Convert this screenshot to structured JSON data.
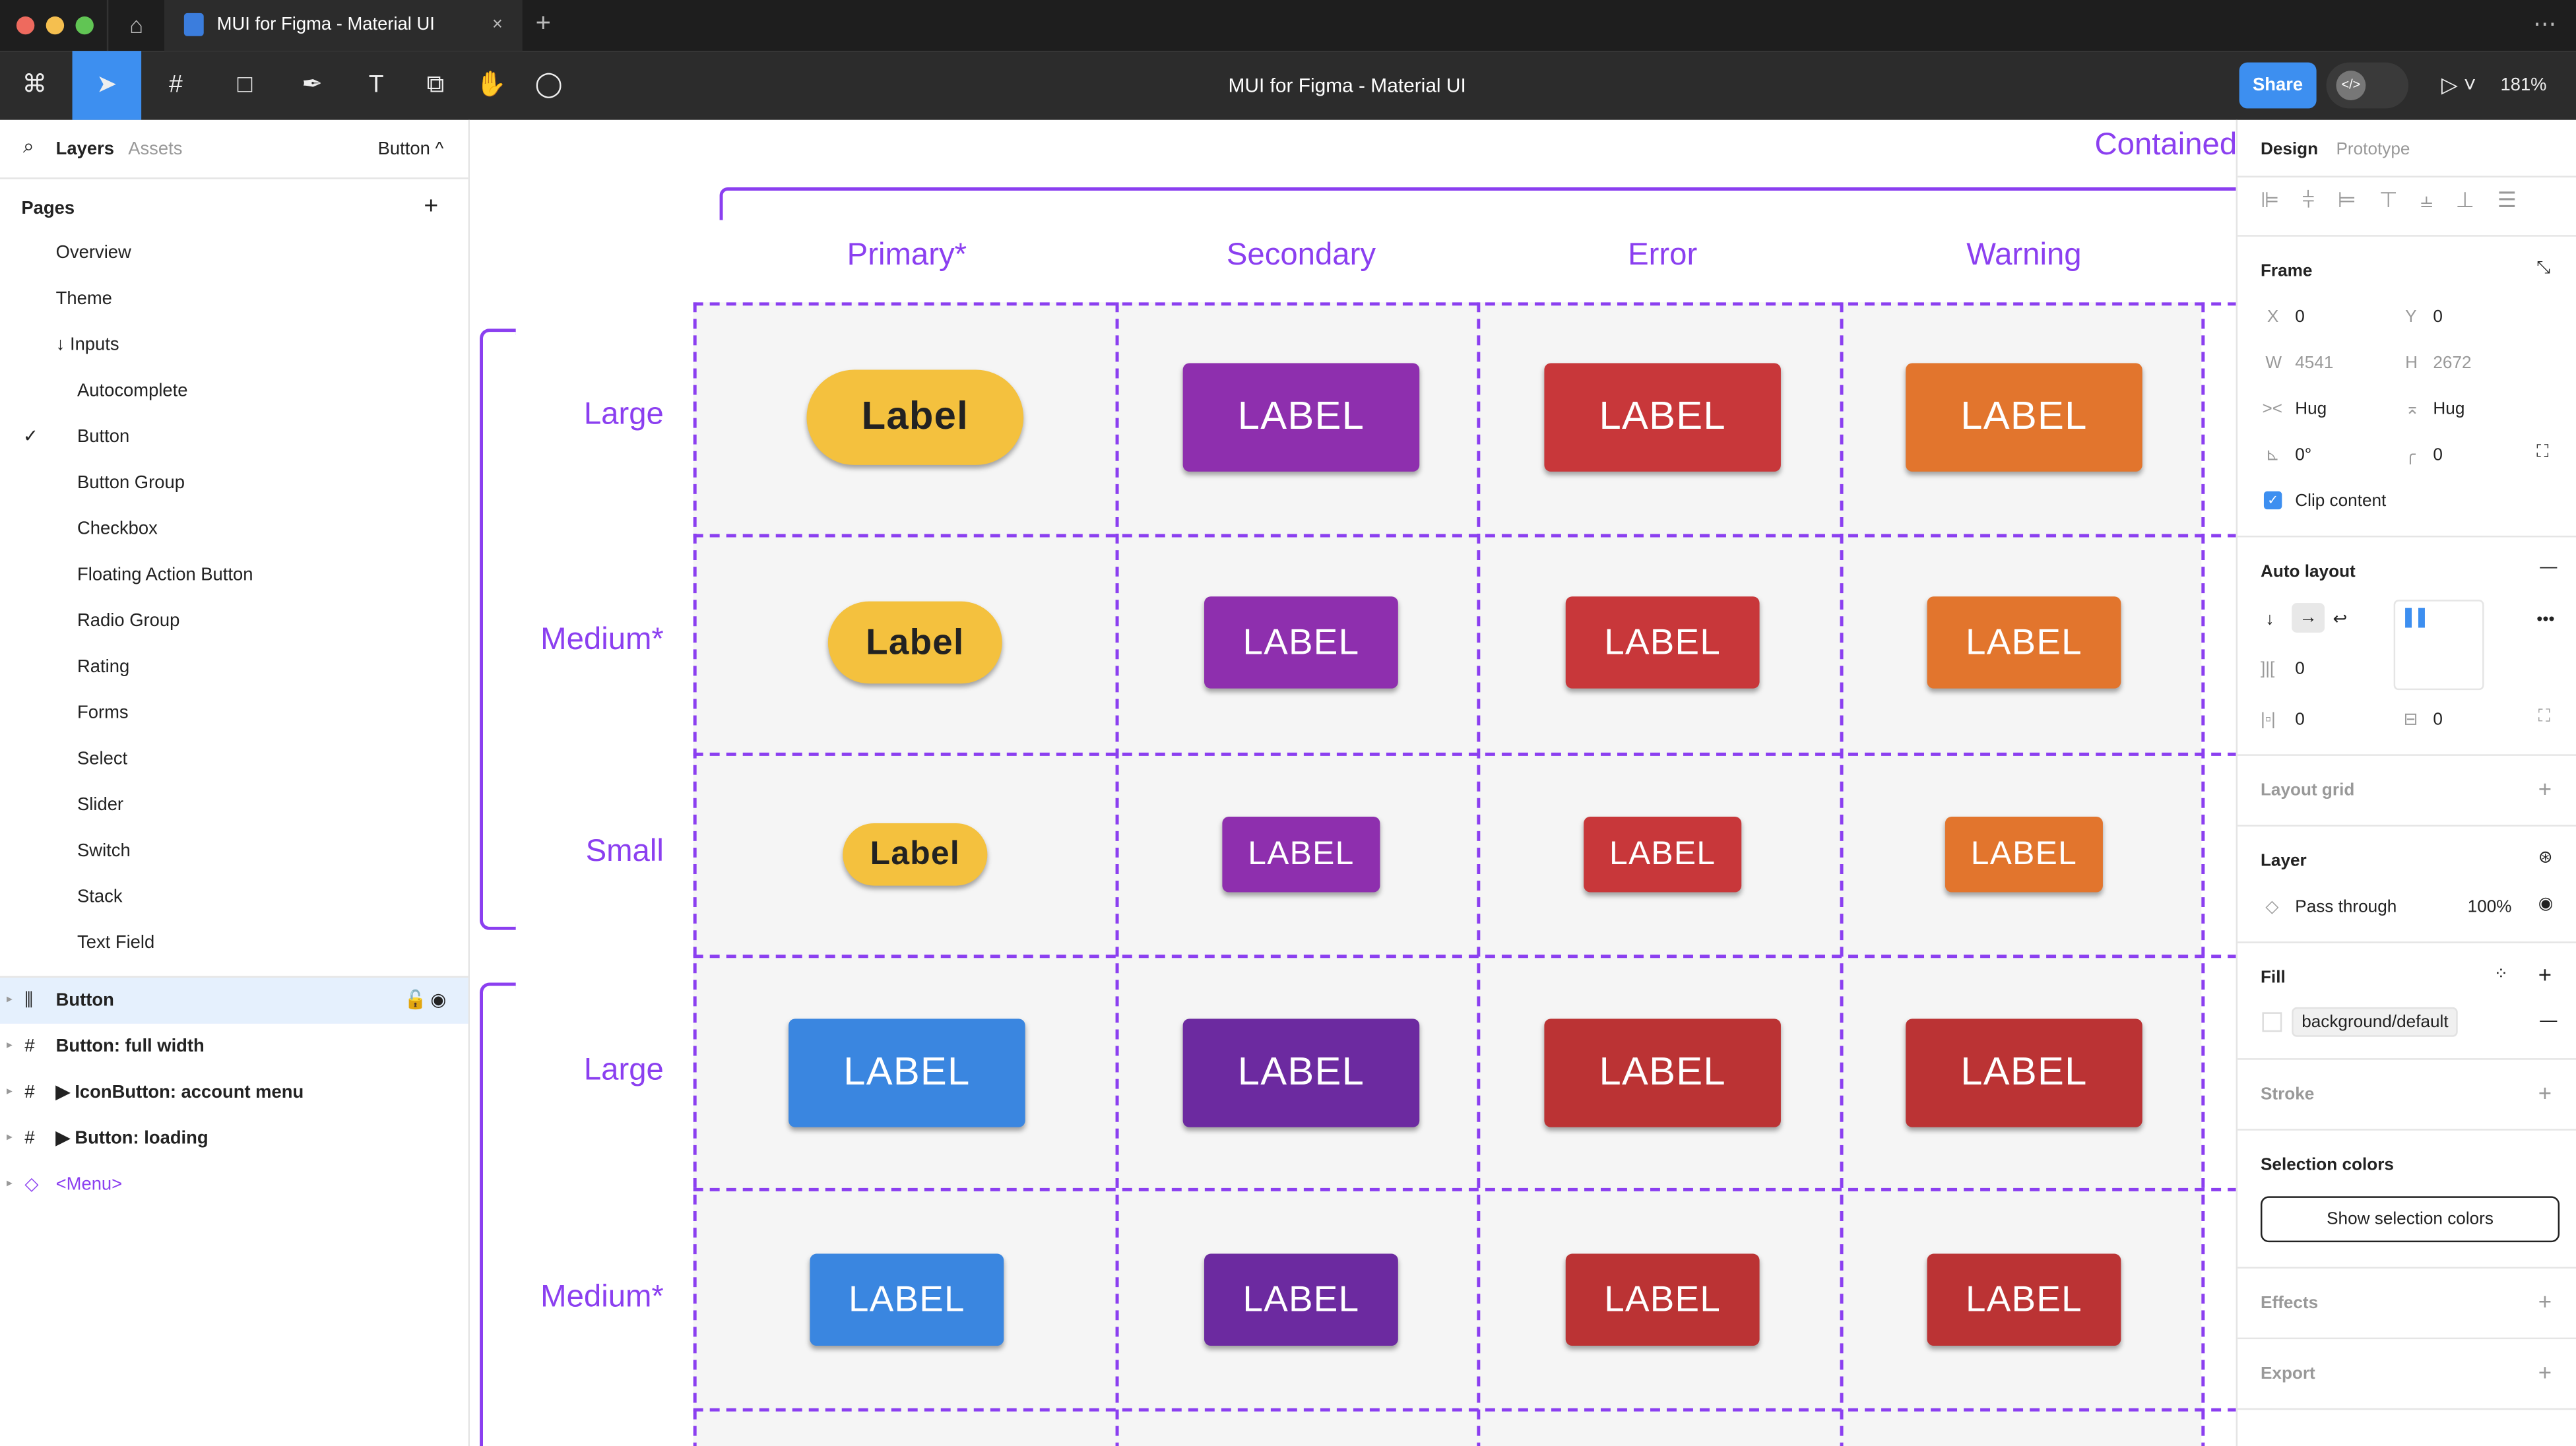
{
  "window": {
    "tab_title": "MUI for Figma - Material UI",
    "close": "×",
    "new_tab": "+",
    "more": "⋯"
  },
  "toolbar": {
    "title": "MUI for Figma - Material UI",
    "share": "Share",
    "zoom": "181%",
    "dev_mode": "</>"
  },
  "left_panel": {
    "tabs": [
      "Layers",
      "Assets"
    ],
    "page_selector": "Button ^",
    "pages_label": "Pages",
    "add": "+",
    "pages": [
      "Overview",
      "Theme",
      "↓ Inputs",
      "Autocomplete",
      "Button",
      "Button Group",
      "Checkbox",
      "Floating Action Button",
      "Radio Group",
      "Rating",
      "Forms",
      "Select",
      "Slider",
      "Switch",
      "Stack",
      "Text Field"
    ],
    "current_page": "Button",
    "layers": [
      {
        "name": "Button",
        "icon": "auto-layout",
        "selected": true
      },
      {
        "name": "Button: full width",
        "icon": "frame"
      },
      {
        "name": "▶ IconButton: account menu",
        "icon": "frame"
      },
      {
        "name": "▶ Button: loading",
        "icon": "frame"
      },
      {
        "name": "<Menu>",
        "icon": "component"
      }
    ]
  },
  "canvas": {
    "frame_title": "Contained",
    "columns": [
      "Primary*",
      "Secondary",
      "Error",
      "Warning"
    ],
    "rows": [
      "Large",
      "Medium*",
      "Small",
      "Large",
      "Medium*"
    ],
    "button_rows": [
      {
        "size": "large",
        "labels": [
          "Label",
          "LABEL",
          "LABEL",
          "LABEL"
        ],
        "colors": [
          "#f4c13e",
          "#8e2fae",
          "#c8373a",
          "#e2752d"
        ]
      },
      {
        "size": "medium",
        "labels": [
          "Label",
          "LABEL",
          "LABEL",
          "LABEL"
        ],
        "colors": [
          "#f4c13e",
          "#8e2fae",
          "#c8373a",
          "#e2752d"
        ]
      },
      {
        "size": "small",
        "labels": [
          "Label",
          "LABEL",
          "LABEL",
          "LABEL"
        ],
        "colors": [
          "#f4c13e",
          "#8e2fae",
          "#c8373a",
          "#e2752d"
        ]
      },
      {
        "size": "large",
        "labels": [
          "LABEL",
          "LABEL",
          "LABEL",
          "LABEL"
        ],
        "colors": [
          "#3a86e0",
          "#6c2aa0",
          "#bb3334",
          "#bb3334"
        ]
      },
      {
        "size": "medium",
        "labels": [
          "LABEL",
          "LABEL",
          "LABEL",
          "LABEL"
        ],
        "colors": [
          "#3a86e0",
          "#6c2aa0",
          "#bb3334",
          "#bb3334"
        ]
      }
    ],
    "accent": "#8b3ff0"
  },
  "design_panel": {
    "tabs": [
      "Design",
      "Prototype"
    ],
    "frame": "Frame",
    "x_label": "X",
    "x": "0",
    "y_label": "Y",
    "y": "0",
    "w_label": "W",
    "w": "4541",
    "h_label": "H",
    "h": "2672",
    "hug_w": "Hug",
    "hug_h": "Hug",
    "rotation": "0°",
    "radius": "0",
    "clip_content": "Clip content",
    "clip_checked": true,
    "auto_layout": "Auto layout",
    "gap": "0",
    "padding_h": "0",
    "padding_v": "0",
    "layout_grid": "Layout grid",
    "layer": "Layer",
    "blend": "Pass through",
    "opacity": "100%",
    "fill": "Fill",
    "fill_style": "background/default",
    "stroke": "Stroke",
    "selection_colors": "Selection colors",
    "show_selection_colors": "Show selection colors",
    "effects": "Effects",
    "export": "Export"
  }
}
